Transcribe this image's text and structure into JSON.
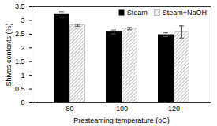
{
  "chart_data": {
    "type": "bar",
    "x_label": "Presteaming temperature (oC)",
    "y_label": "Shives contents (%)",
    "categories": [
      "80",
      "100",
      "120"
    ],
    "series": [
      {
        "name": "Steam",
        "color": "#000000",
        "values": [
          3.22,
          2.58,
          2.48
        ],
        "errors": [
          0.1,
          0.07,
          0.07
        ]
      },
      {
        "name": "Steam+NaOH",
        "color": "#a6a6a6",
        "values": [
          2.82,
          2.7,
          2.58
        ],
        "errors": [
          0.04,
          0.04,
          0.22
        ]
      }
    ],
    "ylim": [
      0,
      3.5
    ],
    "yticks": [
      0,
      0.5,
      1,
      1.5,
      2,
      2.5,
      3,
      3.5
    ],
    "grid": false,
    "legend": "top-right"
  }
}
